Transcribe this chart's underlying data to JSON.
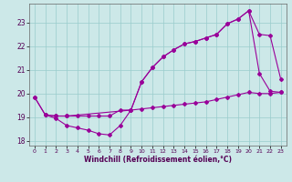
{
  "xlabel": "Windchill (Refroidissement éolien,°C)",
  "bg_color": "#cce8e8",
  "grid_color": "#99cccc",
  "line_color": "#990099",
  "xlim": [
    -0.5,
    23.5
  ],
  "ylim": [
    17.8,
    23.8
  ],
  "xticks": [
    0,
    1,
    2,
    3,
    4,
    5,
    6,
    7,
    8,
    9,
    10,
    11,
    12,
    13,
    14,
    15,
    16,
    17,
    18,
    19,
    20,
    21,
    22,
    23
  ],
  "yticks": [
    18,
    19,
    20,
    21,
    22,
    23
  ],
  "line1_x": [
    0,
    1,
    2,
    3,
    4,
    5,
    6,
    7,
    8,
    9,
    10,
    11,
    12,
    13,
    14,
    15,
    16,
    17,
    18,
    19,
    20,
    21,
    22,
    23
  ],
  "line1_y": [
    19.85,
    19.1,
    19.05,
    19.05,
    19.05,
    19.05,
    19.05,
    19.05,
    19.3,
    19.3,
    19.35,
    19.4,
    19.45,
    19.5,
    19.55,
    19.6,
    19.65,
    19.75,
    19.85,
    19.95,
    20.05,
    20.0,
    20.0,
    20.05
  ],
  "line2_x": [
    1,
    2,
    3,
    9,
    10,
    11,
    12,
    13,
    14,
    15,
    16,
    17,
    18,
    19,
    20,
    21,
    22,
    23
  ],
  "line2_y": [
    19.1,
    19.05,
    19.05,
    19.3,
    20.5,
    21.1,
    21.55,
    21.85,
    22.1,
    22.2,
    22.35,
    22.5,
    22.95,
    23.15,
    23.5,
    22.5,
    22.45,
    20.6
  ],
  "line3_x": [
    0,
    1,
    2,
    3,
    4,
    5,
    6,
    7,
    8,
    9,
    10,
    11,
    12,
    13,
    14,
    15,
    16,
    17,
    18,
    19,
    20,
    21,
    22,
    23
  ],
  "line3_y": [
    19.85,
    19.1,
    18.95,
    18.65,
    18.55,
    18.45,
    18.3,
    18.25,
    18.65,
    19.3,
    20.5,
    21.1,
    21.55,
    21.85,
    22.1,
    22.2,
    22.35,
    22.5,
    22.95,
    23.15,
    23.5,
    20.85,
    20.1,
    20.05
  ]
}
